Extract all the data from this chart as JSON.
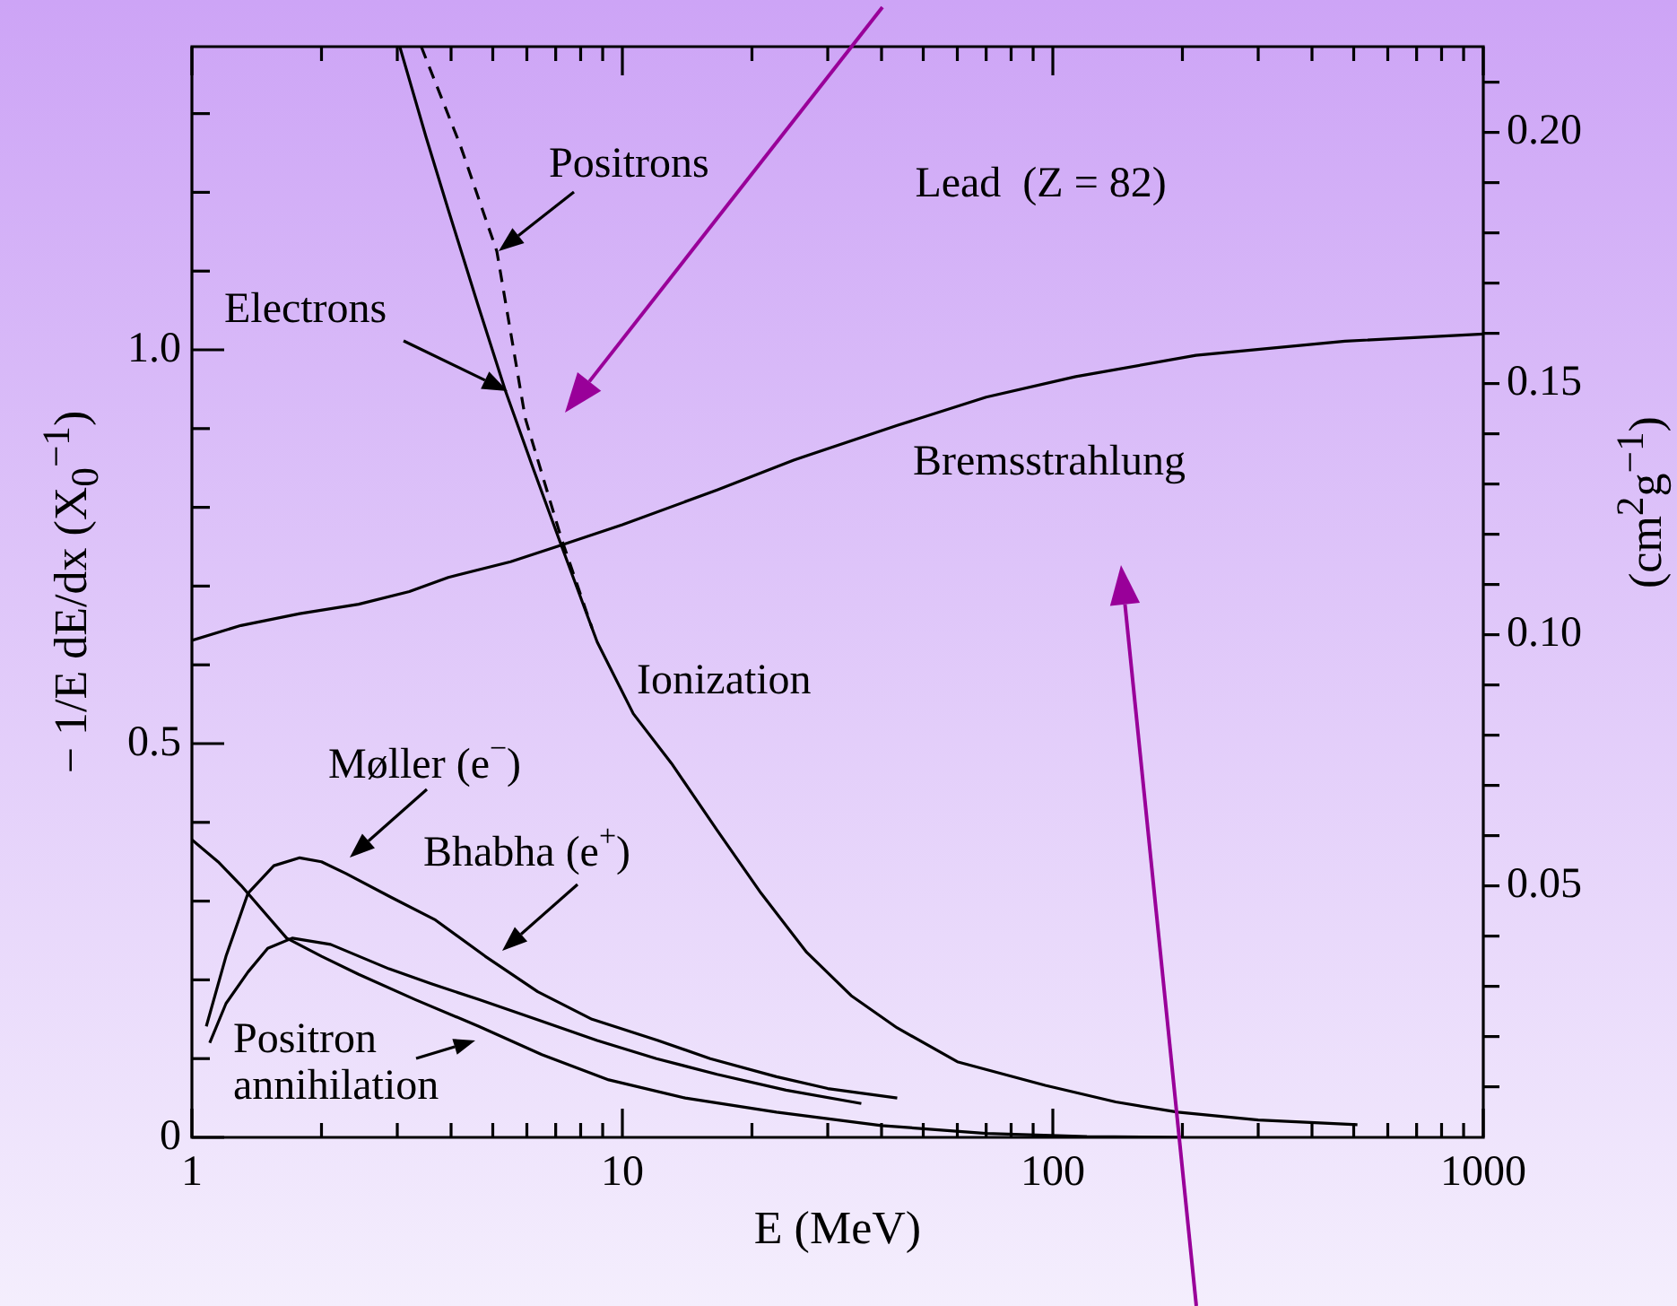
{
  "chart_data": {
    "type": "line",
    "title": "Lead  (Z = 82)",
    "xlabel": "E  (MeV)",
    "ylabel": "− 1/E dE/dx  (X$_{0}$$^{−1}$)",
    "y2label": "(cm$^{2}$g$^{−1}$)",
    "log": "x",
    "grid": false,
    "legend": false,
    "marker": "none",
    "xlim": [
      1,
      1000
    ],
    "xticks": [
      1,
      {
        "value": 2,
        "label": null
      },
      {
        "value": 3,
        "label": null
      },
      {
        "value": 4,
        "label": null
      },
      {
        "value": 5,
        "label": null
      },
      {
        "value": 6,
        "label": null
      },
      {
        "value": 7,
        "label": null
      },
      {
        "value": 8,
        "label": null
      },
      {
        "value": 9,
        "label": null
      },
      10,
      {
        "value": 20,
        "label": null
      },
      {
        "value": 30,
        "label": null
      },
      {
        "value": 40,
        "label": null
      },
      {
        "value": 50,
        "label": null
      },
      {
        "value": 60,
        "label": null
      },
      {
        "value": 70,
        "label": null
      },
      {
        "value": 80,
        "label": null
      },
      {
        "value": 90,
        "label": null
      },
      100,
      {
        "value": 200,
        "label": null
      },
      {
        "value": 300,
        "label": null
      },
      {
        "value": 400,
        "label": null
      },
      {
        "value": 500,
        "label": null
      },
      {
        "value": 600,
        "label": null
      },
      {
        "value": 700,
        "label": null
      },
      {
        "value": 800,
        "label": null
      },
      {
        "value": 900,
        "label": null
      },
      1000
    ],
    "ylim": [
      0,
      1.385
    ],
    "yticks": [
      0,
      {
        "value": 0.1,
        "label": null
      },
      {
        "value": 0.2,
        "label": null
      },
      {
        "value": 0.3,
        "label": null
      },
      {
        "value": 0.4,
        "label": null
      },
      0.5,
      {
        "value": 0.6,
        "label": null
      },
      {
        "value": 0.7,
        "label": null
      },
      {
        "value": 0.8,
        "label": null
      },
      {
        "value": 0.9,
        "label": null
      },
      {
        "value": 1,
        "label": "1.0"
      },
      {
        "value": 1.1,
        "label": null
      },
      {
        "value": 1.2,
        "label": null
      },
      {
        "value": 1.3,
        "label": null
      }
    ],
    "y2lim": [
      0,
      0.217
    ],
    "y2ticks": [
      {
        "value": 0.01,
        "label": null
      },
      {
        "value": 0.02,
        "label": null
      },
      {
        "value": 0.03,
        "label": null
      },
      {
        "value": 0.04,
        "label": null
      },
      0.05,
      {
        "value": 0.06,
        "label": null
      },
      {
        "value": 0.07,
        "label": null
      },
      {
        "value": 0.08,
        "label": null
      },
      {
        "value": 0.09,
        "label": null
      },
      {
        "value": 0.1,
        "label": "0.10"
      },
      {
        "value": 0.11,
        "label": null
      },
      {
        "value": 0.12,
        "label": null
      },
      {
        "value": 0.13,
        "label": null
      },
      {
        "value": 0.14,
        "label": null
      },
      0.15,
      {
        "value": 0.16,
        "label": null
      },
      {
        "value": 0.17,
        "label": null
      },
      {
        "value": 0.18,
        "label": null
      },
      {
        "value": 0.19,
        "label": null
      },
      {
        "value": 0.2,
        "label": "0.20"
      },
      {
        "value": 0.21,
        "label": null
      }
    ],
    "series": [
      {
        "color": "#000000",
        "x": [
          1,
          1.3,
          1.78,
          2.44,
          3.2,
          3.94,
          5.5,
          7.21,
          10,
          16.6,
          25,
          43.5,
          70,
          113,
          215,
          477,
          1000
        ],
        "values": [
          0.631,
          0.65,
          0.665,
          0.677,
          0.693,
          0.711,
          0.731,
          0.752,
          0.778,
          0.822,
          0.86,
          0.904,
          0.94,
          0.966,
          0.993,
          1.011,
          1.02
        ]
      },
      {
        "color": "#000000",
        "x": [
          3.04,
          3.5,
          3.94,
          4.6,
          5.35,
          6.2,
          7.21,
          8.74,
          10.6,
          13,
          16.6,
          21,
          26.8,
          34,
          43.5,
          60,
          96,
          140,
          195,
          300,
          510
        ],
        "values": [
          1.385,
          1.27,
          1.178,
          1.06,
          0.948,
          0.85,
          0.752,
          0.629,
          0.538,
          0.475,
          0.39,
          0.31,
          0.235,
          0.18,
          0.139,
          0.096,
          0.066,
          0.045,
          0.032,
          0.022,
          0.016
        ]
      },
      {
        "color": "#000000",
        "line_style": "dashed",
        "x": [
          3.41,
          4.2,
          5.11,
          5.95,
          7.21,
          8.5
        ],
        "values": [
          1.385,
          1.26,
          1.125,
          0.913,
          0.761,
          0.647
        ]
      },
      {
        "color": "#000000",
        "x": [
          1.08,
          1.2,
          1.35,
          1.55,
          1.78,
          2,
          2.28,
          2.9,
          3.68,
          4.8,
          6.36,
          8.5,
          12.1,
          16,
          22.8,
          30,
          43.5
        ],
        "values": [
          0.141,
          0.23,
          0.31,
          0.345,
          0.355,
          0.35,
          0.335,
          0.305,
          0.276,
          0.23,
          0.185,
          0.15,
          0.123,
          0.1,
          0.077,
          0.062,
          0.05
        ]
      },
      {
        "color": "#000000",
        "x": [
          1.1,
          1.2,
          1.35,
          1.5,
          1.71,
          2.1,
          2.87,
          3.6,
          4.64,
          6.3,
          8.74,
          12,
          16.6,
          24,
          35.9
        ],
        "values": [
          0.12,
          0.17,
          0.21,
          0.24,
          0.253,
          0.245,
          0.214,
          0.195,
          0.175,
          0.15,
          0.123,
          0.1,
          0.08,
          0.06,
          0.043
        ]
      },
      {
        "color": "#000000",
        "x": [
          1,
          1.15,
          1.3,
          1.66,
          2,
          2.44,
          3.3,
          4.64,
          6.5,
          9.3,
          14,
          22.8,
          40,
          70,
          120,
          200
        ],
        "values": [
          0.378,
          0.35,
          0.32,
          0.253,
          0.23,
          0.207,
          0.175,
          0.141,
          0.105,
          0.073,
          0.05,
          0.032,
          0.015,
          0.005,
          0.001,
          0
        ]
      }
    ],
    "annotations": [
      "Positrons",
      "Electrons",
      "Ionization",
      "Bremsstrahlung",
      "Møller (e$^{−}$)",
      "Bhabha (e$^{+}$)",
      "Positron\nannihilation"
    ]
  }
}
